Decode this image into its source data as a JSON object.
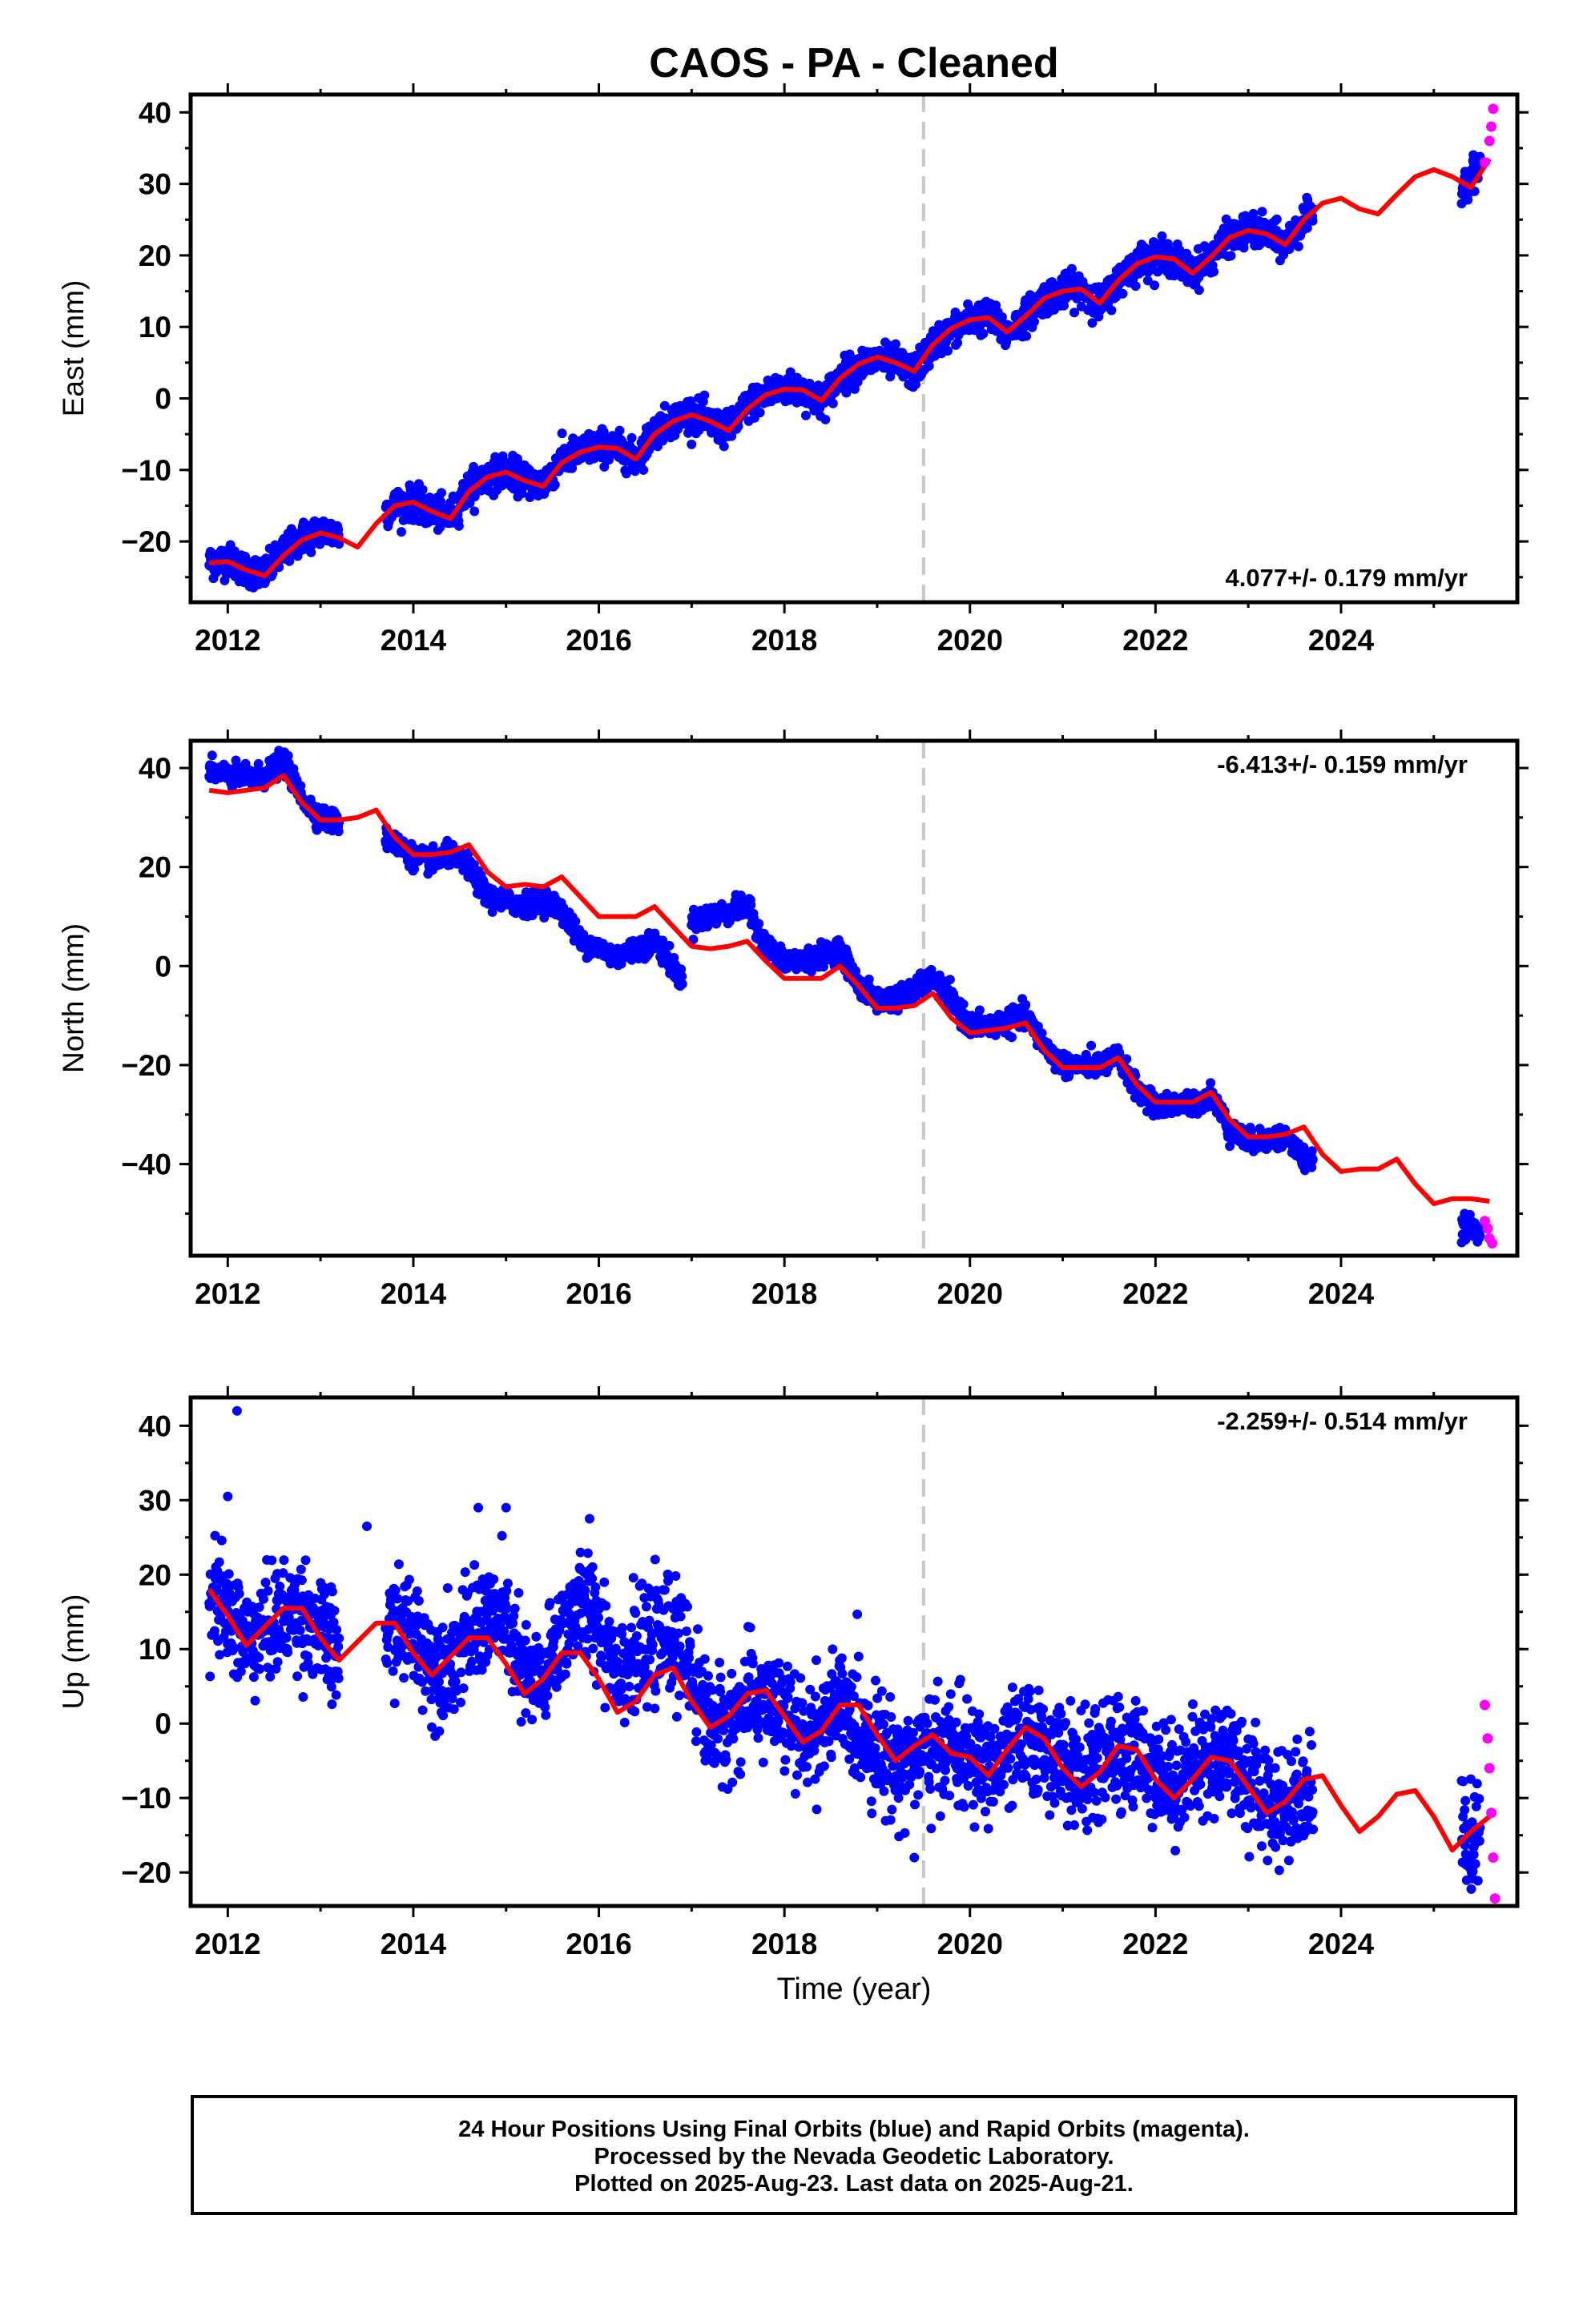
{
  "colors": {
    "final_orbits": "#0000ff",
    "rapid_orbits": "#ff00ff",
    "fit": "#ff0000",
    "event_line": "#c8c8c8"
  },
  "footer": {
    "line1": "24 Hour Positions Using Final Orbits (blue) and Rapid Orbits (magenta).",
    "line2": "Processed by the Nevada Geodetic Laboratory.",
    "line3": "Plotted on 2025-Aug-23. Last data on 2025-Aug-21."
  },
  "chart_data": [
    {
      "type": "scatter",
      "title": "CAOS  - PA - Cleaned",
      "ylabel": "East (mm)",
      "xlabel": "",
      "xlim": [
        2011.6,
        2025.9
      ],
      "ylim": [
        -28.5,
        42.5
      ],
      "xticks": [
        "2012",
        "2014",
        "2016",
        "2018",
        "2020",
        "2022",
        "2024"
      ],
      "yticks": [
        "−20",
        "−10",
        "0",
        "10",
        "20",
        "30",
        "40"
      ],
      "rate_label": "4.077+/- 0.179 mm/yr",
      "rate_position": "bottom-right",
      "event_line_x": 2019.5,
      "series": [
        {
          "kind": "final",
          "segments": [
            [
              2011.8,
              2013.2
            ],
            [
              2013.7,
              2023.7
            ],
            [
              2025.3,
              2025.5
            ]
          ],
          "x": [
            2011.8,
            2012.0,
            2012.2,
            2012.4,
            2012.6,
            2012.8,
            2013.0,
            2013.2,
            2013.8,
            2014.0,
            2014.2,
            2014.4,
            2014.6,
            2014.8,
            2015.0,
            2015.2,
            2015.4,
            2015.6,
            2015.8,
            2016.0,
            2016.2,
            2016.4,
            2016.6,
            2016.8,
            2017.0,
            2017.2,
            2017.4,
            2017.6,
            2017.8,
            2018.0,
            2018.2,
            2018.4,
            2018.6,
            2018.8,
            2019.0,
            2019.2,
            2019.4,
            2019.6,
            2019.8,
            2020.0,
            2020.2,
            2020.4,
            2020.6,
            2020.8,
            2021.0,
            2021.2,
            2021.4,
            2021.6,
            2021.8,
            2022.0,
            2022.2,
            2022.4,
            2022.6,
            2022.8,
            2023.0,
            2023.2,
            2023.4,
            2023.6,
            2025.3,
            2025.4,
            2025.5
          ],
          "y": [
            -23.0,
            -22.5,
            -24.0,
            -24.5,
            -21.5,
            -19.5,
            -18.5,
            -19.0,
            -15.0,
            -14.5,
            -16.0,
            -16.5,
            -12.5,
            -11.0,
            -10.0,
            -11.5,
            -12.0,
            -8.5,
            -7.5,
            -6.5,
            -7.0,
            -8.5,
            -4.5,
            -3.0,
            -2.0,
            -3.5,
            -4.5,
            -1.0,
            0.5,
            1.5,
            1.0,
            -0.5,
            3.0,
            4.5,
            5.5,
            5.0,
            3.5,
            7.5,
            9.5,
            11.0,
            11.5,
            9.0,
            11.5,
            14.0,
            15.0,
            15.5,
            13.0,
            16.5,
            19.0,
            20.0,
            19.5,
            17.5,
            20.0,
            22.5,
            23.5,
            23.0,
            21.5,
            25.0,
            30.0,
            31.0,
            33.0
          ]
        },
        {
          "kind": "rapid",
          "x": [
            2025.55,
            2025.6,
            2025.62,
            2025.64
          ],
          "y": [
            33.0,
            36.0,
            38.0,
            40.5
          ]
        },
        {
          "kind": "fit",
          "x": [
            2011.8,
            2012.0,
            2012.2,
            2012.4,
            2012.6,
            2012.8,
            2013.0,
            2013.2,
            2013.4,
            2013.6,
            2013.8,
            2014.0,
            2014.2,
            2014.4,
            2014.6,
            2014.8,
            2015.0,
            2015.2,
            2015.4,
            2015.6,
            2015.8,
            2016.0,
            2016.2,
            2016.4,
            2016.6,
            2016.8,
            2017.0,
            2017.2,
            2017.4,
            2017.6,
            2017.8,
            2018.0,
            2018.2,
            2018.4,
            2018.6,
            2018.8,
            2019.0,
            2019.2,
            2019.4,
            2019.6,
            2019.8,
            2020.0,
            2020.2,
            2020.4,
            2020.6,
            2020.8,
            2021.0,
            2021.2,
            2021.4,
            2021.6,
            2021.8,
            2022.0,
            2022.2,
            2022.4,
            2022.6,
            2022.8,
            2023.0,
            2023.2,
            2023.4,
            2023.6,
            2023.8,
            2024.0,
            2024.2,
            2024.4,
            2024.6,
            2024.8,
            2025.0,
            2025.2,
            2025.4,
            2025.6
          ],
          "y": [
            -23.0,
            -22.8,
            -24.0,
            -24.8,
            -22.0,
            -19.8,
            -18.8,
            -19.5,
            -20.8,
            -17.5,
            -15.0,
            -14.5,
            -15.8,
            -16.8,
            -13.0,
            -11.0,
            -10.3,
            -11.5,
            -12.3,
            -9.0,
            -7.5,
            -6.8,
            -7.0,
            -8.5,
            -5.0,
            -3.2,
            -2.3,
            -3.2,
            -4.5,
            -1.5,
            0.5,
            1.3,
            1.2,
            -0.3,
            2.8,
            4.8,
            5.8,
            5.0,
            3.8,
            7.5,
            9.8,
            11.0,
            11.3,
            9.3,
            11.5,
            14.0,
            15.0,
            15.3,
            13.3,
            16.5,
            18.8,
            19.8,
            19.5,
            17.5,
            19.8,
            22.5,
            23.5,
            23.0,
            21.5,
            25.0,
            27.3,
            28.0,
            26.5,
            25.8,
            28.5,
            31.0,
            32.0,
            31.0,
            29.5,
            33.5
          ]
        }
      ]
    },
    {
      "type": "scatter",
      "ylabel": "North (mm)",
      "xlabel": "",
      "xlim": [
        2011.6,
        2025.9
      ],
      "ylim": [
        -58.5,
        45.5
      ],
      "xticks": [
        "2012",
        "2014",
        "2016",
        "2018",
        "2020",
        "2022",
        "2024"
      ],
      "yticks": [
        "−40",
        "−20",
        "0",
        "20",
        "40"
      ],
      "rate_label": "-6.413+/- 0.159 mm/yr",
      "rate_position": "top-right",
      "event_line_x": 2019.5,
      "series": [
        {
          "kind": "final",
          "segments": [
            [
              2011.8,
              2013.2
            ],
            [
              2013.7,
              2016.9
            ],
            [
              2017.0,
              2023.7
            ],
            [
              2025.3,
              2025.5
            ]
          ],
          "x": [
            2011.8,
            2012.0,
            2012.2,
            2012.4,
            2012.6,
            2012.8,
            2013.0,
            2013.2,
            2013.8,
            2014.0,
            2014.2,
            2014.4,
            2014.6,
            2014.8,
            2015.0,
            2015.2,
            2015.4,
            2015.6,
            2015.8,
            2016.0,
            2016.2,
            2016.4,
            2016.6,
            2016.8,
            2016.9,
            2017.0,
            2017.2,
            2017.4,
            2017.6,
            2017.8,
            2018.0,
            2018.2,
            2018.4,
            2018.6,
            2018.8,
            2019.0,
            2019.2,
            2019.4,
            2019.6,
            2019.8,
            2020.0,
            2020.2,
            2020.4,
            2020.6,
            2020.8,
            2021.0,
            2021.2,
            2021.4,
            2021.6,
            2021.8,
            2022.0,
            2022.2,
            2022.4,
            2022.6,
            2022.8,
            2023.0,
            2023.2,
            2023.4,
            2023.6,
            2025.3,
            2025.4,
            2025.5
          ],
          "y": [
            39.5,
            38.5,
            38.0,
            38.5,
            41.5,
            34.0,
            30.0,
            29.0,
            25.0,
            22.0,
            21.0,
            22.5,
            20.0,
            14.0,
            13.0,
            12.5,
            13.5,
            11.5,
            5.0,
            3.5,
            2.0,
            3.5,
            5.0,
            0.0,
            -3.0,
            9.0,
            10.0,
            11.0,
            12.0,
            4.0,
            1.0,
            1.0,
            2.0,
            3.5,
            -4.0,
            -7.0,
            -6.5,
            -5.0,
            -2.5,
            -7.0,
            -12.0,
            -12.0,
            -11.5,
            -10.0,
            -16.0,
            -20.0,
            -20.0,
            -20.0,
            -18.5,
            -25.0,
            -28.5,
            -28.0,
            -28.0,
            -26.0,
            -33.0,
            -35.5,
            -35.0,
            -34.5,
            -39.0,
            -52.5,
            -53.0,
            -53.5
          ]
        },
        {
          "kind": "rapid",
          "x": [
            2025.55,
            2025.58,
            2025.6,
            2025.63
          ],
          "y": [
            -51.5,
            -53.0,
            -55.0,
            -56.0
          ]
        },
        {
          "kind": "fit",
          "x": [
            2011.8,
            2012.0,
            2012.2,
            2012.4,
            2012.6,
            2012.8,
            2013.0,
            2013.2,
            2013.4,
            2013.6,
            2013.8,
            2014.0,
            2014.2,
            2014.4,
            2014.6,
            2014.8,
            2015.0,
            2015.2,
            2015.4,
            2015.6,
            2015.8,
            2016.0,
            2016.2,
            2016.4,
            2016.6,
            2016.8,
            2017.0,
            2017.2,
            2017.4,
            2017.6,
            2017.8,
            2018.0,
            2018.2,
            2018.4,
            2018.6,
            2018.8,
            2019.0,
            2019.2,
            2019.4,
            2019.6,
            2019.8,
            2020.0,
            2020.2,
            2020.4,
            2020.6,
            2020.8,
            2021.0,
            2021.2,
            2021.4,
            2021.6,
            2021.8,
            2022.0,
            2022.2,
            2022.4,
            2022.6,
            2022.8,
            2023.0,
            2023.2,
            2023.4,
            2023.6,
            2023.8,
            2024.0,
            2024.2,
            2024.4,
            2024.6,
            2024.8,
            2025.0,
            2025.2,
            2025.4,
            2025.6
          ],
          "y": [
            35.5,
            35.0,
            35.5,
            36.0,
            38.5,
            33.0,
            29.5,
            29.5,
            30.0,
            31.5,
            26.0,
            22.5,
            22.5,
            23.0,
            24.5,
            19.0,
            16.0,
            16.5,
            16.0,
            18.0,
            14.0,
            10.0,
            10.0,
            10.0,
            12.0,
            8.0,
            4.0,
            3.5,
            4.0,
            5.0,
            1.0,
            -2.5,
            -2.5,
            -2.5,
            0.0,
            -4.0,
            -8.5,
            -8.5,
            -8.0,
            -5.5,
            -10.5,
            -13.5,
            -13.0,
            -12.5,
            -11.5,
            -17.0,
            -20.5,
            -20.5,
            -20.5,
            -18.5,
            -24.0,
            -27.5,
            -27.5,
            -27.5,
            -25.5,
            -31.0,
            -34.5,
            -34.5,
            -34.0,
            -32.5,
            -38.0,
            -41.5,
            -41.0,
            -41.0,
            -39.0,
            -44.0,
            -48.0,
            -47.0,
            -47.0,
            -47.5
          ]
        }
      ]
    },
    {
      "type": "scatter",
      "ylabel": "Up (mm)",
      "xlabel": "Time (year)",
      "xlim": [
        2011.6,
        2025.9
      ],
      "ylim": [
        -24.5,
        43.8
      ],
      "xticks": [
        "2012",
        "2014",
        "2016",
        "2018",
        "2020",
        "2022",
        "2024"
      ],
      "yticks": [
        "−20",
        "−10",
        "0",
        "10",
        "20",
        "30",
        "40"
      ],
      "rate_label": "-2.259+/- 0.514 mm/yr",
      "rate_position": "top-right",
      "event_line_x": 2019.5,
      "series": [
        {
          "kind": "final",
          "segments": [
            [
              2011.8,
              2013.2
            ],
            [
              2013.7,
              2023.7
            ],
            [
              2025.3,
              2025.5
            ]
          ],
          "x": [
            2011.8,
            2012.0,
            2012.2,
            2012.4,
            2012.6,
            2012.8,
            2013.0,
            2013.2,
            2013.8,
            2014.0,
            2014.2,
            2014.4,
            2014.6,
            2014.8,
            2015.0,
            2015.2,
            2015.4,
            2015.6,
            2015.8,
            2016.0,
            2016.2,
            2016.4,
            2016.6,
            2016.8,
            2017.0,
            2017.2,
            2017.4,
            2017.6,
            2017.8,
            2018.0,
            2018.2,
            2018.4,
            2018.6,
            2018.8,
            2019.0,
            2019.2,
            2019.4,
            2019.6,
            2019.8,
            2020.0,
            2020.2,
            2020.4,
            2020.6,
            2020.8,
            2021.0,
            2021.2,
            2021.4,
            2021.6,
            2021.8,
            2022.0,
            2022.2,
            2022.4,
            2022.6,
            2022.8,
            2023.0,
            2023.2,
            2023.4,
            2023.6,
            2025.3,
            2025.4,
            2025.5
          ],
          "y": [
            17.0,
            15.0,
            11.0,
            12.5,
            14.5,
            15.0,
            12.0,
            8.5,
            13.0,
            12.5,
            8.0,
            8.5,
            11.5,
            14.5,
            13.0,
            6.0,
            5.5,
            12.5,
            16.0,
            14.0,
            8.0,
            9.0,
            10.5,
            12.0,
            7.0,
            -0.5,
            0.0,
            3.0,
            3.5,
            1.0,
            -2.5,
            0.0,
            2.5,
            -1.0,
            -3.0,
            -5.5,
            -4.0,
            -4.0,
            -3.0,
            -5.0,
            -6.0,
            -4.0,
            -2.0,
            -3.0,
            -5.0,
            -7.0,
            -5.5,
            -4.0,
            -4.0,
            -6.0,
            -8.0,
            -6.0,
            -4.5,
            -3.5,
            -8.0,
            -10.0,
            -11.0,
            -9.0,
            -14.0,
            -16.0,
            -15.0
          ]
        },
        {
          "kind": "rapid",
          "x": [
            2025.55,
            2025.58,
            2025.6,
            2025.62,
            2025.64,
            2025.66
          ],
          "y": [
            2.5,
            -2.0,
            -6.0,
            -12.0,
            -18.0,
            -23.5
          ]
        },
        {
          "kind": "fit",
          "x": [
            2011.8,
            2012.0,
            2012.2,
            2012.4,
            2012.6,
            2012.8,
            2013.0,
            2013.2,
            2013.4,
            2013.6,
            2013.8,
            2014.0,
            2014.2,
            2014.4,
            2014.6,
            2014.8,
            2015.0,
            2015.2,
            2015.4,
            2015.6,
            2015.8,
            2016.0,
            2016.2,
            2016.4,
            2016.6,
            2016.8,
            2017.0,
            2017.2,
            2017.4,
            2017.6,
            2017.8,
            2018.0,
            2018.2,
            2018.4,
            2018.6,
            2018.8,
            2019.0,
            2019.2,
            2019.4,
            2019.6,
            2019.8,
            2020.0,
            2020.2,
            2020.4,
            2020.6,
            2020.8,
            2021.0,
            2021.2,
            2021.4,
            2021.6,
            2021.8,
            2022.0,
            2022.2,
            2022.4,
            2022.6,
            2022.8,
            2023.0,
            2023.2,
            2023.4,
            2023.6,
            2023.8,
            2024.0,
            2024.2,
            2024.4,
            2024.6,
            2024.8,
            2025.0,
            2025.2,
            2025.4,
            2025.6
          ],
          "y": [
            18.0,
            14.5,
            10.5,
            13.0,
            15.5,
            15.5,
            11.5,
            8.5,
            11.0,
            13.5,
            13.5,
            9.5,
            6.5,
            9.0,
            11.5,
            11.5,
            8.0,
            4.0,
            6.0,
            9.5,
            9.5,
            6.0,
            1.5,
            3.0,
            6.5,
            7.5,
            3.0,
            -0.5,
            1.0,
            4.0,
            4.5,
            1.0,
            -2.5,
            -1.0,
            2.5,
            2.5,
            -1.5,
            -5.0,
            -3.0,
            -1.5,
            -4.0,
            -4.5,
            -7.0,
            -3.5,
            -0.5,
            -2.0,
            -6.0,
            -8.5,
            -6.5,
            -3.0,
            -3.5,
            -7.5,
            -10.0,
            -7.5,
            -4.5,
            -5.0,
            -8.5,
            -12.0,
            -10.5,
            -7.5,
            -7.0,
            -11.0,
            -14.5,
            -12.5,
            -9.5,
            -9.0,
            -12.5,
            -17.0,
            -14.5,
            -12.5
          ]
        }
      ]
    }
  ]
}
